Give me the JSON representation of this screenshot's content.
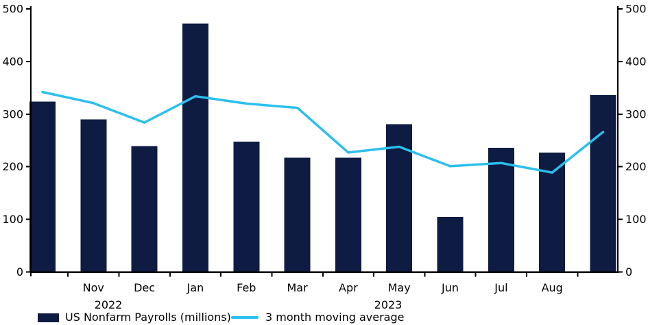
{
  "chart": {
    "colors": {
      "bar": "#0e1b42",
      "line": "#2bbfef",
      "axis": "#000000",
      "text": "#000000",
      "background": "#ffffff"
    },
    "legend": {
      "items": [
        {
          "swatch": "bar-swatch",
          "label": "US Nonfarm Payrolls (millions)"
        },
        {
          "swatch": "line-swatch",
          "label": "3 month moving average"
        }
      ]
    }
  },
  "chart_data": {
    "type": "bar",
    "title": "",
    "categories": [
      "",
      "Nov",
      "Dec",
      "Jan",
      "Feb",
      "Mar",
      "Apr",
      "May",
      "Jun",
      "Jul",
      "Aug",
      ""
    ],
    "year_labels": [
      {
        "label": "2022",
        "anchor_month": "Nov"
      },
      {
        "label": "2023",
        "anchor_month": "May"
      }
    ],
    "series": [
      {
        "name": "US Nonfarm Payrolls (millions)",
        "type": "bar",
        "color": "#0e1b42",
        "values": [
          324,
          290,
          239,
          472,
          248,
          217,
          217,
          281,
          105,
          236,
          227,
          336
        ]
      },
      {
        "name": "3 month moving average",
        "type": "line",
        "color": "#2bbfef",
        "values": [
          342,
          321,
          284,
          334,
          320,
          312,
          227,
          238,
          201,
          207,
          189,
          266
        ]
      }
    ],
    "ylim": [
      0,
      500
    ],
    "yticks": [
      0,
      100,
      200,
      300,
      400,
      500
    ],
    "axes": {
      "left_labels": true,
      "right_labels": true,
      "top_spine": false,
      "grid": false
    },
    "legend_position": "bottom-left"
  }
}
